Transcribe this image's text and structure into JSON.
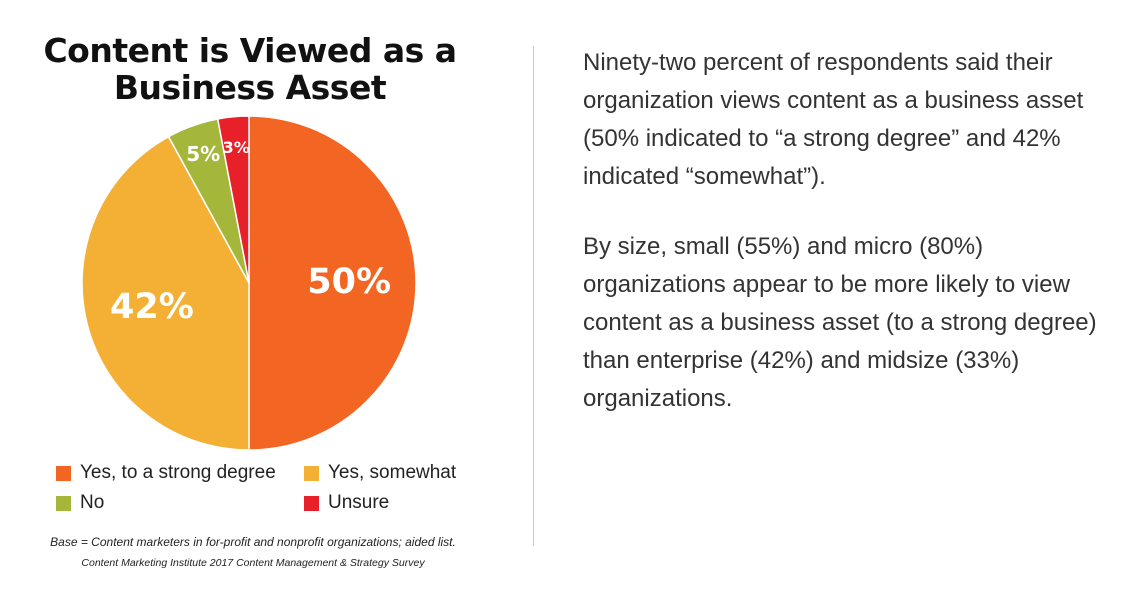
{
  "chart_data": {
    "type": "pie",
    "title": "Content is Viewed as a Business Asset",
    "slices": [
      {
        "name": "Yes, to a strong degree",
        "value": 50,
        "label": "50%",
        "color": "#F26522"
      },
      {
        "name": "Yes, somewhat",
        "value": 42,
        "label": "42%",
        "color": "#F4B034"
      },
      {
        "name": "No",
        "value": 5,
        "label": "5%",
        "color": "#A4B73A"
      },
      {
        "name": "Unsure",
        "value": 3,
        "label": "3%",
        "color": "#E8202A"
      }
    ],
    "legend_placement": "bottom"
  },
  "title": "Content is Viewed as a Business Asset",
  "notes": {
    "base": "Base = Content marketers in for-profit and nonprofit organizations; aided list.",
    "source": "Content Marketing Institute 2017 Content Management & Strategy Survey"
  },
  "body": {
    "paragraph1": "Ninety-two percent of respondents said their organization views content as a business asset (50% indicated to “a strong degree” and 42% indicated “somewhat”).",
    "paragraph2": "By size, small (55%) and micro (80%) organizations appear to be more likely to view content as a business asset (to a strong degree) than enterprise (42%) and midsize (33%) organizations."
  }
}
